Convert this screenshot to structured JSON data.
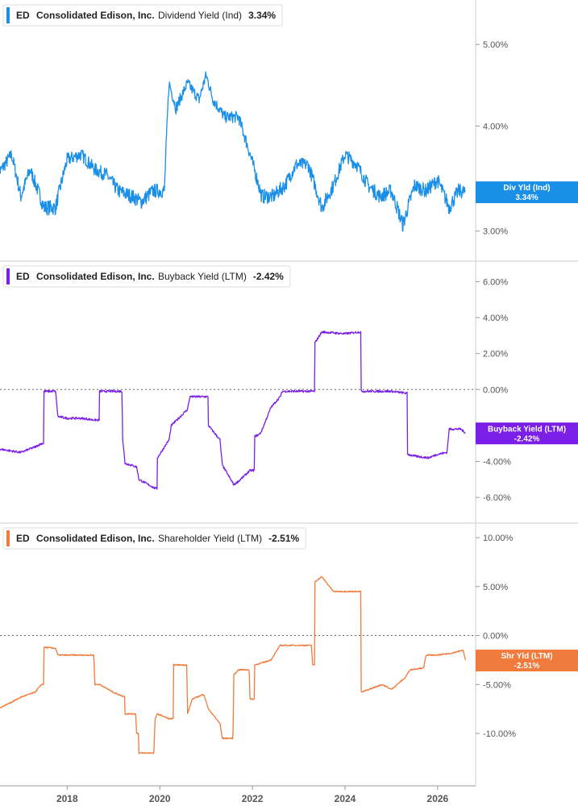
{
  "chart_data": [
    {
      "type": "line",
      "ticker": "ED",
      "company": "Consolidated Edison, Inc.",
      "metric": "Dividend Yield (Ind)",
      "current_value": "3.34%",
      "flag_label": "Div Yld (Ind)",
      "color": "#1a8fe8",
      "y_ticks": [
        "5.00%",
        "4.00%",
        "3.00%"
      ],
      "y_tick_values": [
        5.0,
        4.0,
        3.0
      ],
      "ylim": [
        2.85,
        5.5
      ],
      "log_scale": true,
      "x": [
        2016.5,
        2016.8,
        2017.0,
        2017.2,
        2017.5,
        2017.75,
        2018.0,
        2018.3,
        2018.6,
        2018.85,
        2019.1,
        2019.4,
        2019.6,
        2019.85,
        2020.1,
        2020.2,
        2020.35,
        2020.6,
        2020.85,
        2021.0,
        2021.15,
        2021.4,
        2021.7,
        2021.95,
        2022.2,
        2022.45,
        2022.7,
        2022.95,
        2023.2,
        2023.5,
        2023.75,
        2024.0,
        2024.25,
        2024.5,
        2024.75,
        2025.0,
        2025.25,
        2025.5,
        2025.75,
        2026.0,
        2026.25,
        2026.45,
        2026.6
      ],
      "y": [
        3.5,
        3.7,
        3.3,
        3.55,
        3.2,
        3.2,
        3.65,
        3.7,
        3.55,
        3.5,
        3.35,
        3.3,
        3.25,
        3.35,
        3.35,
        4.5,
        4.2,
        4.5,
        4.3,
        4.6,
        4.3,
        4.1,
        4.1,
        3.7,
        3.3,
        3.3,
        3.4,
        3.6,
        3.6,
        3.2,
        3.4,
        3.7,
        3.6,
        3.4,
        3.3,
        3.35,
        3.05,
        3.4,
        3.35,
        3.45,
        3.2,
        3.35,
        3.34
      ]
    },
    {
      "type": "line",
      "ticker": "ED",
      "company": "Consolidated Edison, Inc.",
      "metric": "Buyback Yield (LTM)",
      "current_value": "-2.42%",
      "flag_label": "Buyback Yield (LTM)",
      "color": "#7b1fe8",
      "y_ticks": [
        "6.00%",
        "4.00%",
        "2.00%",
        "0.00%",
        "-2.00%",
        "-4.00%",
        "-6.00%"
      ],
      "y_tick_values": [
        6,
        4,
        2,
        0,
        -2,
        -4,
        -6
      ],
      "ylim": [
        -6.8,
        6.6
      ],
      "zero_line": true,
      "x": [
        2016.5,
        2017.0,
        2017.3,
        2017.45,
        2017.5,
        2017.75,
        2017.8,
        2018.0,
        2018.3,
        2018.6,
        2018.7,
        2019.0,
        2019.2,
        2019.25,
        2019.5,
        2019.55,
        2019.9,
        2019.95,
        2020.2,
        2020.25,
        2020.6,
        2020.65,
        2020.95,
        2021.05,
        2021.3,
        2021.35,
        2021.6,
        2021.7,
        2021.95,
        2022.05,
        2022.15,
        2022.2,
        2022.4,
        2022.6,
        2022.65,
        2023.0,
        2023.3,
        2023.35,
        2023.5,
        2024.0,
        2024.3,
        2024.35,
        2025.0,
        2025.3,
        2025.35,
        2025.5,
        2025.8,
        2026.0,
        2026.2,
        2026.25,
        2026.5,
        2026.6
      ],
      "y": [
        -3.3,
        -3.5,
        -3.2,
        -3.0,
        -0.1,
        -0.1,
        -1.5,
        -1.6,
        -1.6,
        -1.7,
        -0.1,
        -0.1,
        -2.8,
        -4.1,
        -4.3,
        -5.0,
        -5.5,
        -3.8,
        -2.8,
        -2.0,
        -1.1,
        -0.4,
        -0.4,
        -2.0,
        -2.8,
        -4.2,
        -5.3,
        -5.1,
        -4.5,
        -2.6,
        -2.5,
        -2.3,
        -1.0,
        -0.4,
        -0.1,
        -0.1,
        -0.1,
        2.6,
        3.2,
        3.1,
        3.2,
        -0.1,
        -0.1,
        -0.2,
        -3.6,
        -3.7,
        -3.8,
        -3.6,
        -3.5,
        -2.2,
        -2.2,
        -2.42
      ]
    },
    {
      "type": "line",
      "ticker": "ED",
      "company": "Consolidated Edison, Inc.",
      "metric": "Shareholder Yield (LTM)",
      "current_value": "-2.51%",
      "flag_label": "Shr Yld (LTM)",
      "color": "#f07b3c",
      "y_ticks": [
        "10.00%",
        "5.00%",
        "0.00%",
        "-5.00%",
        "-10.00%"
      ],
      "y_tick_values": [
        10,
        5,
        0,
        -5,
        -10
      ],
      "ylim": [
        -14.2,
        10.5
      ],
      "zero_line": true,
      "x": [
        2016.5,
        2016.8,
        2017.0,
        2017.3,
        2017.45,
        2017.5,
        2017.75,
        2017.8,
        2018.0,
        2018.3,
        2018.6,
        2018.7,
        2019.0,
        2019.2,
        2019.25,
        2019.5,
        2019.55,
        2019.9,
        2019.95,
        2020.2,
        2020.3,
        2020.4,
        2020.6,
        2020.7,
        2020.95,
        2021.05,
        2021.3,
        2021.35,
        2021.6,
        2021.7,
        2021.95,
        2022.05,
        2022.2,
        2022.4,
        2022.6,
        2022.7,
        2023.0,
        2023.3,
        2023.35,
        2023.5,
        2023.75,
        2024.0,
        2024.3,
        2024.35,
        2024.8,
        2025.0,
        2025.3,
        2025.4,
        2025.7,
        2025.75,
        2026.0,
        2026.3,
        2026.55,
        2026.6
      ],
      "y": [
        -7.5,
        -6.8,
        -6.3,
        -5.8,
        -5.0,
        -1.2,
        -1.3,
        -2.0,
        -2.0,
        -2.0,
        -5.0,
        -5.0,
        -5.8,
        -6.2,
        -8.0,
        -10.0,
        -12.0,
        -8.5,
        -8.0,
        -8.5,
        -3.0,
        -3.0,
        -8.0,
        -6.5,
        -6.0,
        -7.5,
        -9.0,
        -10.5,
        -4.0,
        -3.5,
        -6.5,
        -3.0,
        -2.8,
        -2.5,
        -1.0,
        -1.0,
        -1.0,
        -3.0,
        5.5,
        6.0,
        4.5,
        4.5,
        4.5,
        -5.8,
        -5.0,
        -5.5,
        -4.3,
        -3.5,
        -3.3,
        -2.0,
        -2.0,
        -1.8,
        -1.5,
        -2.51
      ]
    }
  ],
  "x_axis": {
    "labels": [
      "2018",
      "2020",
      "2022",
      "2024",
      "2026"
    ],
    "values": [
      2018,
      2020,
      2022,
      2024,
      2026
    ],
    "xlim": [
      2016.55,
      2026.82
    ]
  },
  "colors": {
    "grid_zero": "#666666",
    "divider": "#cccccc"
  }
}
